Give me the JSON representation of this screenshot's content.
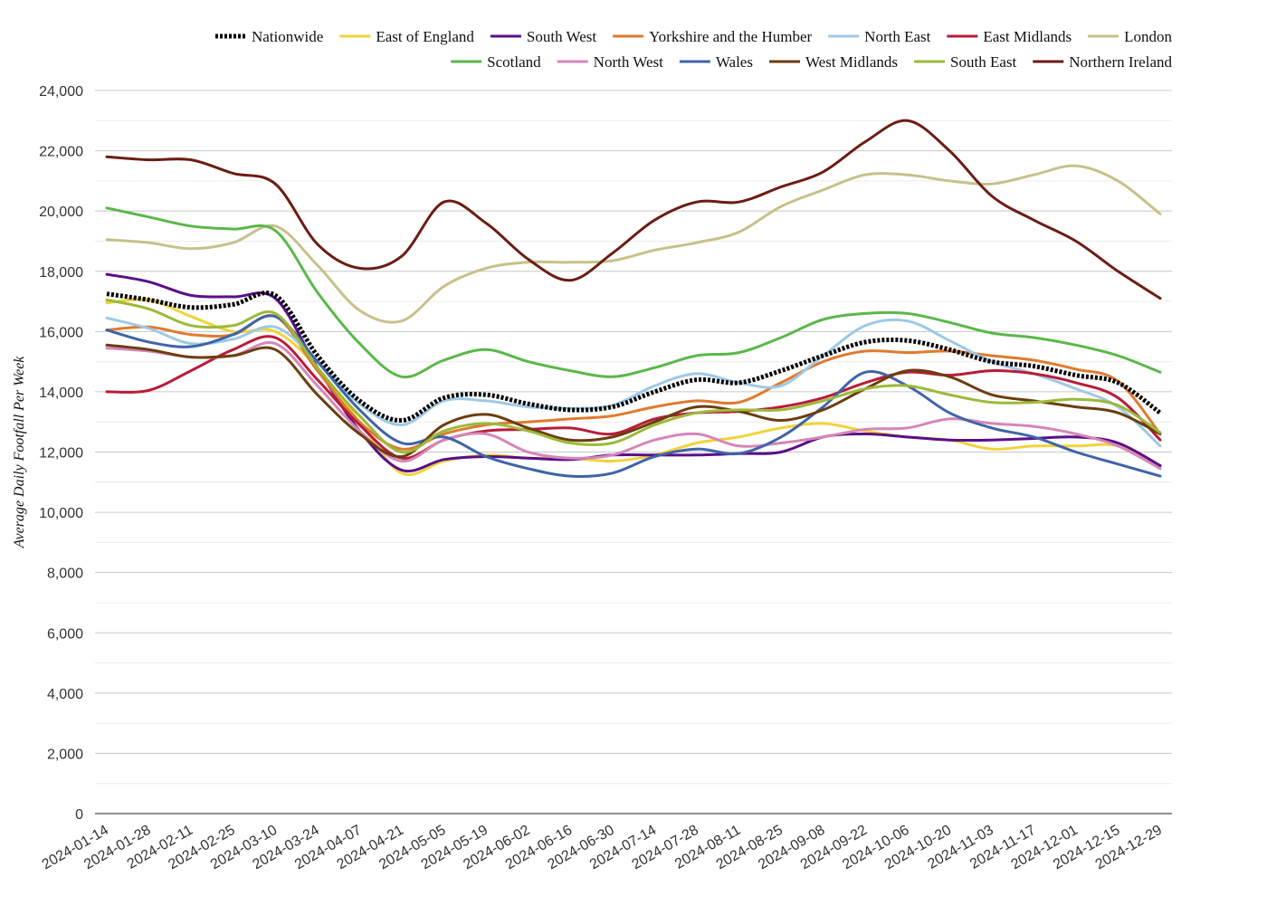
{
  "chart_data": {
    "type": "line",
    "title": "",
    "xlabel": "",
    "ylabel": "Average Daily Footfall Per Week",
    "ylim": [
      0,
      24000
    ],
    "y_ticks": [
      0,
      2000,
      4000,
      6000,
      8000,
      10000,
      12000,
      14000,
      16000,
      18000,
      20000,
      22000,
      24000
    ],
    "y_tick_labels": [
      "0",
      "2,000",
      "4,000",
      "6,000",
      "8,000",
      "10,000",
      "12,000",
      "14,000",
      "16,000",
      "18,000",
      "20,000",
      "22,000",
      "24,000"
    ],
    "x_tick_labels": [
      "2024-01-14",
      "2024-01-28",
      "2024-02-11",
      "2024-02-25",
      "2024-03-10",
      "2024-03-24",
      "2024-04-07",
      "2024-04-21",
      "2024-05-05",
      "2024-05-19",
      "2024-06-02",
      "2024-06-16",
      "2024-06-30",
      "2024-07-14",
      "2024-07-28",
      "2024-08-11",
      "2024-08-25",
      "2024-09-08",
      "2024-09-22",
      "2024-10-06",
      "2024-10-20",
      "2024-11-03",
      "2024-11-17",
      "2024-12-01",
      "2024-12-15",
      "2024-12-29"
    ],
    "grid": true,
    "legend_position": "top",
    "x": [
      "2024-01-14",
      "2024-01-28",
      "2024-02-11",
      "2024-02-25",
      "2024-03-10",
      "2024-03-24",
      "2024-04-07",
      "2024-04-21",
      "2024-05-05",
      "2024-05-19",
      "2024-06-02",
      "2024-06-16",
      "2024-06-30",
      "2024-07-14",
      "2024-07-28",
      "2024-08-11",
      "2024-08-25",
      "2024-09-08",
      "2024-09-22",
      "2024-10-06",
      "2024-10-20",
      "2024-11-03",
      "2024-11-17",
      "2024-12-01",
      "2024-12-15",
      "2024-12-29"
    ],
    "series": [
      {
        "name": "Nationwide",
        "color": "#000000",
        "dashed": true,
        "values": [
          17250,
          17050,
          16800,
          16900,
          17200,
          15200,
          13700,
          13050,
          13800,
          13900,
          13600,
          13400,
          13500,
          14000,
          14400,
          14300,
          14700,
          15200,
          15650,
          15700,
          15400,
          15000,
          14850,
          14550,
          14300,
          13300
        ]
      },
      {
        "name": "East of England",
        "color": "#f0d43a",
        "values": [
          16950,
          17050,
          16500,
          16000,
          16000,
          14800,
          13000,
          11300,
          11700,
          11900,
          11800,
          11800,
          11700,
          11900,
          12300,
          12500,
          12800,
          12950,
          12700,
          12500,
          12400,
          12100,
          12200,
          12200,
          12200,
          11500
        ]
      },
      {
        "name": "South West",
        "color": "#5a0f8a",
        "values": [
          17900,
          17650,
          17200,
          17150,
          17100,
          14800,
          12700,
          11400,
          11750,
          11850,
          11800,
          11750,
          11900,
          11900,
          11900,
          11950,
          12000,
          12500,
          12600,
          12500,
          12400,
          12400,
          12450,
          12500,
          12300,
          11550
        ]
      },
      {
        "name": "Yorkshire and the Humber",
        "color": "#e07a2e",
        "values": [
          16050,
          16150,
          15900,
          15900,
          16500,
          14700,
          13000,
          12100,
          12600,
          12900,
          13000,
          13100,
          13200,
          13500,
          13700,
          13650,
          14300,
          15000,
          15350,
          15300,
          15350,
          15200,
          15050,
          14750,
          14350,
          12600
        ]
      },
      {
        "name": "North East",
        "color": "#9ec9e5",
        "values": [
          16450,
          16100,
          15600,
          15750,
          16150,
          15000,
          13600,
          12900,
          13700,
          13700,
          13500,
          13450,
          13550,
          14200,
          14600,
          14300,
          14200,
          15200,
          16200,
          16350,
          15700,
          15000,
          14600,
          14100,
          13500,
          12200
        ]
      },
      {
        "name": "East Midlands",
        "color": "#b81c38",
        "values": [
          14000,
          14050,
          14700,
          15400,
          15800,
          14400,
          12900,
          11800,
          12400,
          12700,
          12750,
          12800,
          12600,
          13100,
          13300,
          13350,
          13500,
          13800,
          14300,
          14650,
          14550,
          14700,
          14600,
          14300,
          13800,
          12400
        ]
      },
      {
        "name": "London",
        "color": "#c7c18a",
        "values": [
          19050,
          18950,
          18750,
          18950,
          19500,
          18200,
          16700,
          16350,
          17500,
          18100,
          18300,
          18300,
          18350,
          18700,
          18950,
          19300,
          20150,
          20700,
          21200,
          21200,
          21000,
          20900,
          21200,
          21500,
          21000,
          19900
        ]
      },
      {
        "name": "Scotland",
        "color": "#5ab84a",
        "values": [
          20100,
          19800,
          19500,
          19400,
          19350,
          17300,
          15600,
          14500,
          15050,
          15400,
          15000,
          14700,
          14500,
          14800,
          15200,
          15300,
          15800,
          16400,
          16600,
          16600,
          16300,
          15950,
          15800,
          15550,
          15200,
          14650
        ]
      },
      {
        "name": "North West",
        "color": "#d587b8",
        "values": [
          15450,
          15350,
          15150,
          15200,
          15600,
          14200,
          12700,
          11700,
          12400,
          12600,
          12000,
          11800,
          11900,
          12400,
          12600,
          12200,
          12300,
          12500,
          12750,
          12800,
          13100,
          12950,
          12850,
          12600,
          12200,
          11450
        ]
      },
      {
        "name": "Wales",
        "color": "#3f64a8",
        "values": [
          16050,
          15650,
          15500,
          15900,
          16500,
          15000,
          13400,
          12300,
          12500,
          11850,
          11450,
          11200,
          11300,
          11850,
          12100,
          11950,
          12500,
          13500,
          14650,
          14200,
          13300,
          12800,
          12500,
          12000,
          11600,
          11200
        ]
      },
      {
        "name": "West Midlands",
        "color": "#6b3e0f",
        "values": [
          15550,
          15400,
          15150,
          15200,
          15400,
          13900,
          12600,
          11850,
          12900,
          13250,
          12800,
          12400,
          12500,
          13000,
          13500,
          13350,
          13050,
          13400,
          14100,
          14700,
          14500,
          13900,
          13700,
          13500,
          13300,
          12600
        ]
      },
      {
        "name": "South East",
        "color": "#9cba3a",
        "values": [
          17050,
          16750,
          16200,
          16200,
          16600,
          14800,
          13200,
          12000,
          12700,
          12950,
          12700,
          12300,
          12300,
          12900,
          13300,
          13400,
          13400,
          13700,
          14100,
          14200,
          13900,
          13650,
          13650,
          13750,
          13550,
          12650
        ]
      },
      {
        "name": "Northern Ireland",
        "color": "#6b1d14",
        "values": [
          21800,
          21700,
          21700,
          21250,
          20900,
          18900,
          18100,
          18500,
          20300,
          19600,
          18400,
          17700,
          18600,
          19700,
          20300,
          20300,
          20800,
          21300,
          22300,
          23000,
          22000,
          20500,
          19700,
          19000,
          18000,
          17100
        ]
      }
    ]
  }
}
